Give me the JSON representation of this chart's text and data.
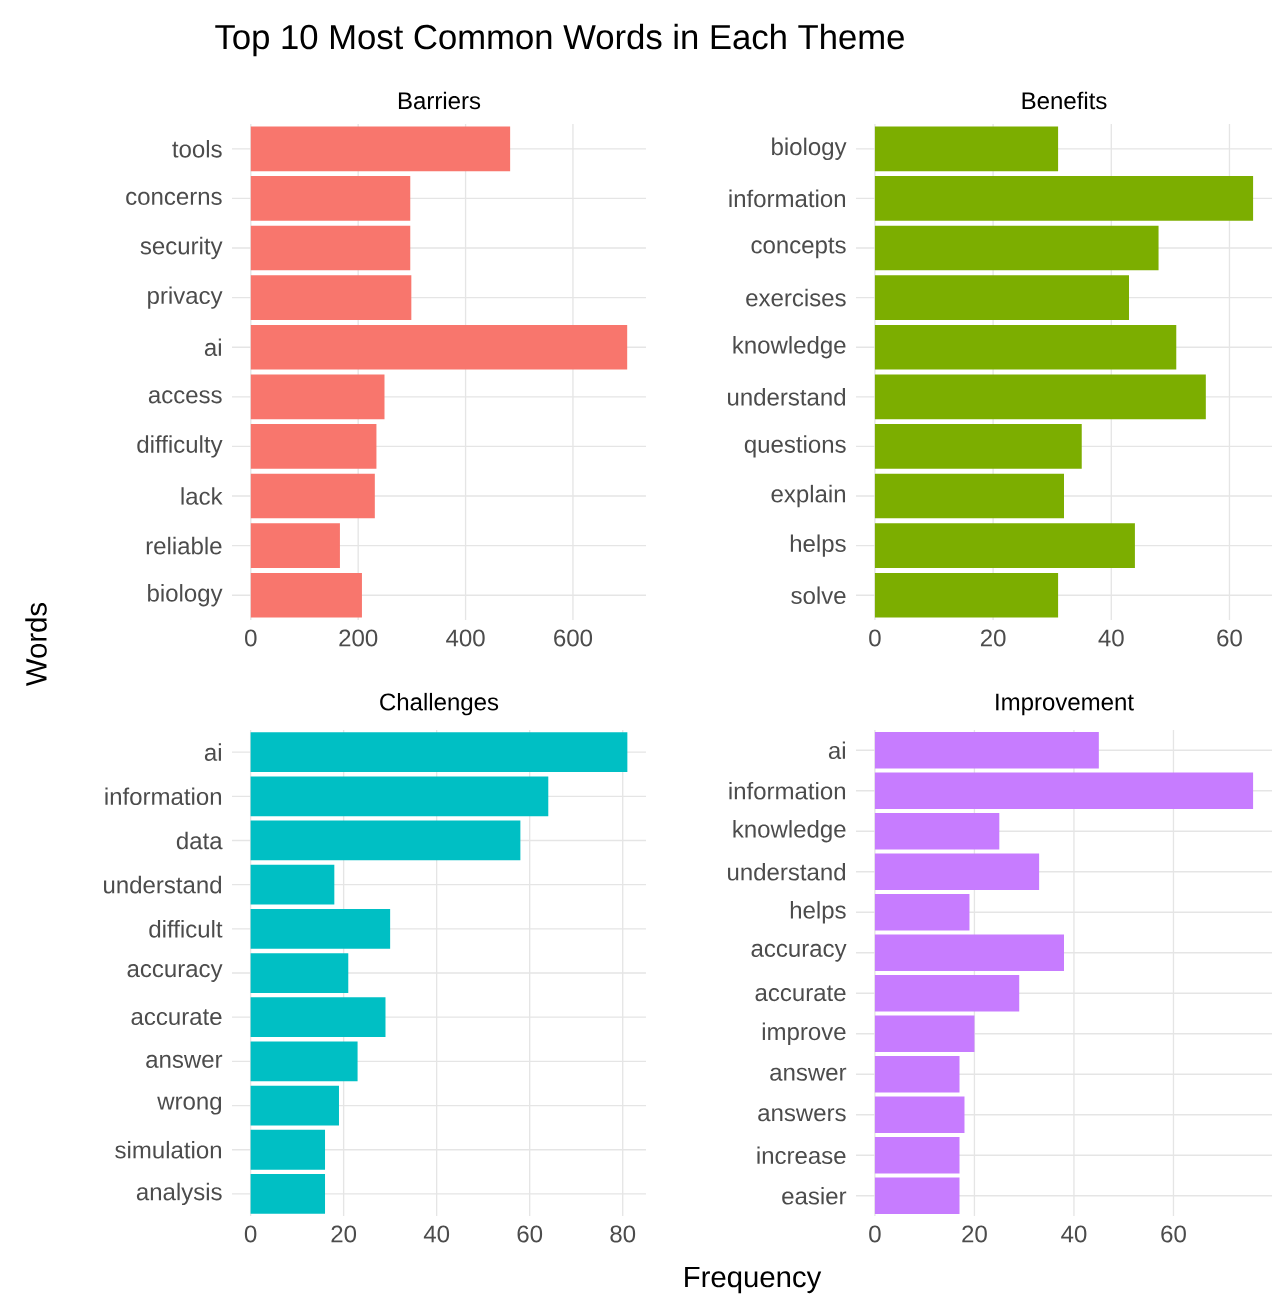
{
  "chart_data": [
    {
      "type": "bar",
      "orientation": "horizontal",
      "title": "Barriers",
      "ylabel": "Words",
      "annotations": [
        "Top 10 Most Common Words in Each Theme",
        "Frequency"
      ],
      "categories": [
        "tools",
        "concerns",
        "security",
        "privacy",
        "ai",
        "access",
        "difficulty",
        "lack",
        "reliable",
        "biology"
      ],
      "values": [
        483,
        297,
        297,
        299,
        701,
        249,
        234,
        231,
        166,
        207
      ],
      "color": "#f8766d",
      "xlim": [
        -35,
        736
      ],
      "xticks": [
        0,
        200,
        400,
        600
      ],
      "grid": true
    },
    {
      "type": "bar",
      "orientation": "horizontal",
      "title": "Benefits",
      "categories": [
        "biology",
        "information",
        "concepts",
        "exercises",
        "knowledge",
        "understand",
        "questions",
        "explain",
        "helps",
        "solve"
      ],
      "values": [
        31,
        64,
        48,
        43,
        51,
        56,
        35,
        32,
        44,
        31
      ],
      "color": "#7cae00",
      "xlim": [
        -3.2,
        67.2
      ],
      "xticks": [
        0,
        20,
        40,
        60
      ],
      "grid": true
    },
    {
      "type": "bar",
      "orientation": "horizontal",
      "title": "Challenges",
      "categories": [
        "ai",
        "information",
        "data",
        "understand",
        "difficult",
        "accuracy",
        "accurate",
        "answer",
        "wrong",
        "simulation",
        "analysis"
      ],
      "values": [
        81,
        64,
        58,
        18,
        30,
        21,
        29,
        23,
        19,
        16,
        16
      ],
      "color": "#00bfc4",
      "xlim": [
        -4,
        85
      ],
      "xticks": [
        0,
        20,
        40,
        60,
        80
      ],
      "grid": true
    },
    {
      "type": "bar",
      "orientation": "horizontal",
      "title": "Improvement",
      "categories": [
        "ai",
        "information",
        "knowledge",
        "understand",
        "helps",
        "accuracy",
        "accurate",
        "improve",
        "answer",
        "answers",
        "increase",
        "easier"
      ],
      "values": [
        45,
        76,
        25,
        33,
        19,
        38,
        29,
        20,
        17,
        18,
        17,
        17
      ],
      "color": "#c77cff",
      "xlim": [
        -3.8,
        79.8
      ],
      "xticks": [
        0,
        20,
        40,
        60
      ],
      "grid": true
    }
  ]
}
